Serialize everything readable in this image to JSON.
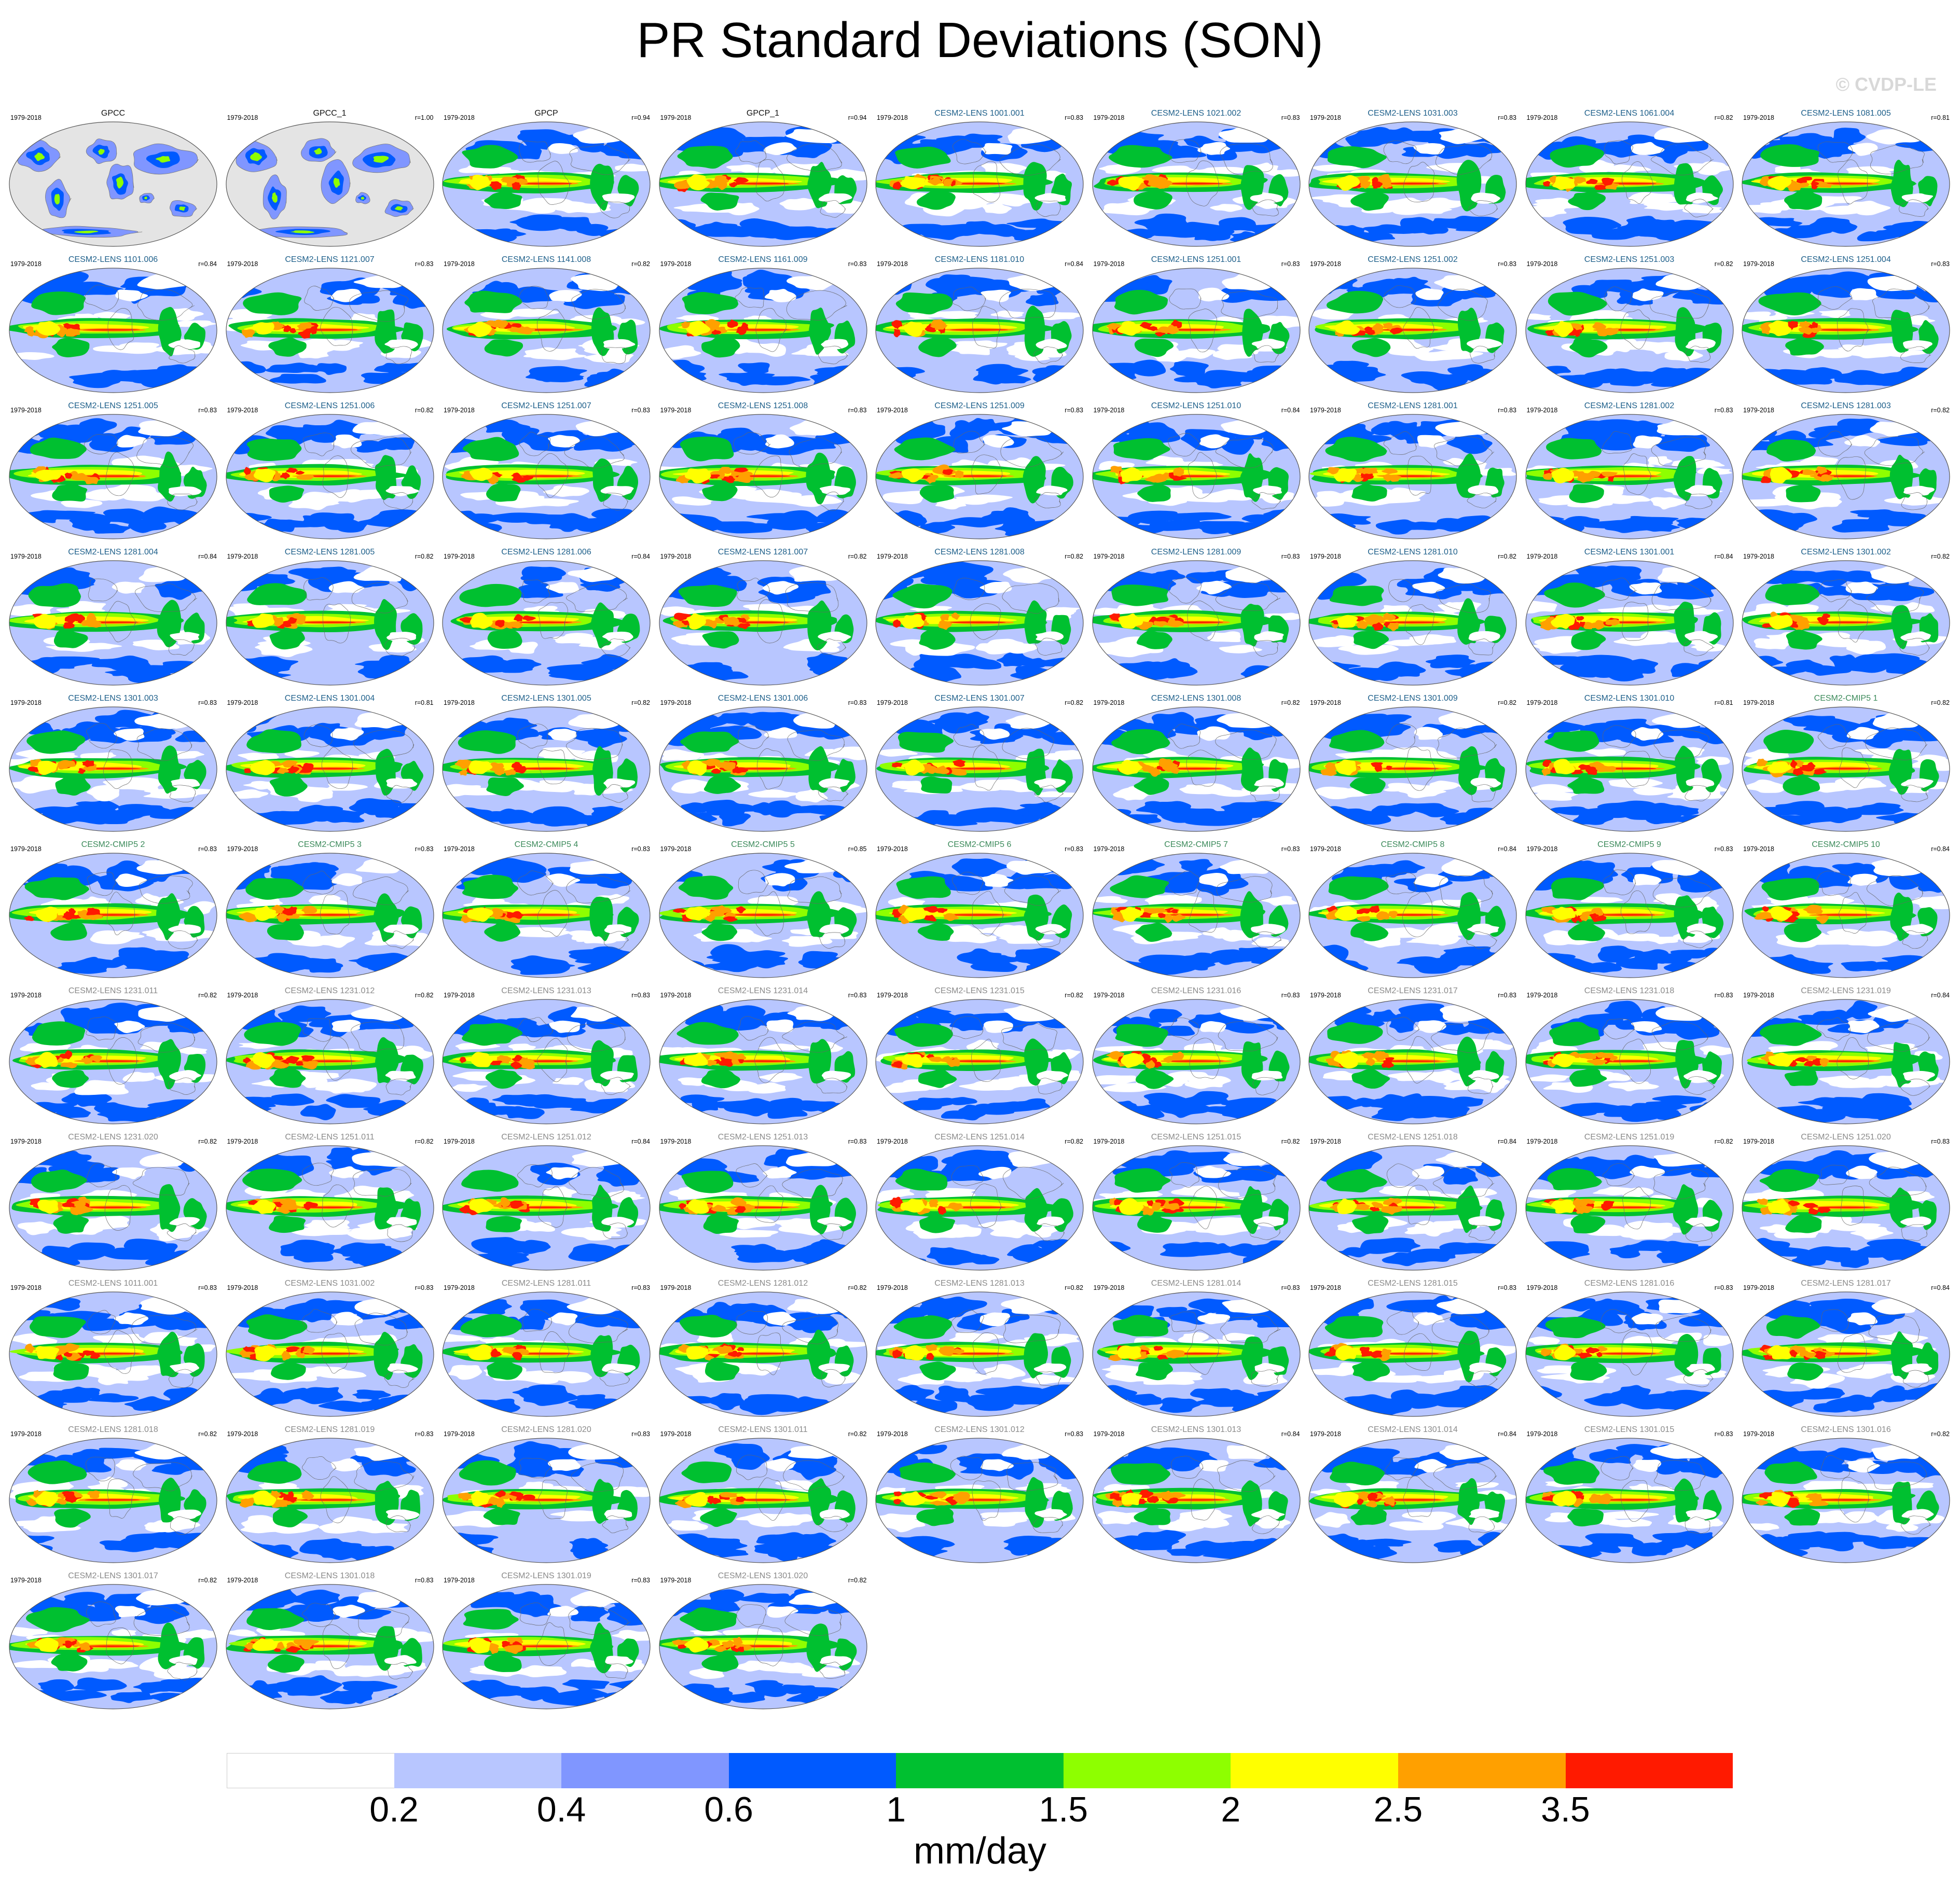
{
  "title": "PR Standard Deviations (SON)",
  "watermark": "© CVDP-LE",
  "period": "1979-2018",
  "colorbar": {
    "units": "mm/day",
    "ticks": [
      "0.2",
      "0.4",
      "0.6",
      "1",
      "1.5",
      "2",
      "2.5",
      "3.5"
    ],
    "colors": [
      "#ffffff",
      "#b8c6ff",
      "#8096ff",
      "#005aff",
      "#00c030",
      "#8eff00",
      "#ffff00",
      "#ffa000",
      "#ff1a00"
    ]
  },
  "panel_colors": {
    "obs": "#111111",
    "lens": "#1d5f8a",
    "cmip": "#3b8a5a",
    "gray": "#8a8a8a"
  },
  "panels": [
    {
      "name": "GPCC",
      "corr": "",
      "group": "obs",
      "masked": true
    },
    {
      "name": "GPCC_1",
      "corr": "r=1.00",
      "group": "obs",
      "masked": true
    },
    {
      "name": "GPCP",
      "corr": "r=0.94",
      "group": "obs",
      "masked": false
    },
    {
      "name": "GPCP_1",
      "corr": "r=0.94",
      "group": "obs",
      "masked": false
    },
    {
      "name": "CESM2-LENS 1001.001",
      "corr": "r=0.83",
      "group": "lens"
    },
    {
      "name": "CESM2-LENS 1021.002",
      "corr": "r=0.83",
      "group": "lens"
    },
    {
      "name": "CESM2-LENS 1031.003",
      "corr": "r=0.83",
      "group": "lens"
    },
    {
      "name": "CESM2-LENS 1061.004",
      "corr": "r=0.82",
      "group": "lens"
    },
    {
      "name": "CESM2-LENS 1081.005",
      "corr": "r=0.81",
      "group": "lens"
    },
    {
      "name": "CESM2-LENS 1101.006",
      "corr": "r=0.84",
      "group": "lens"
    },
    {
      "name": "CESM2-LENS 1121.007",
      "corr": "r=0.83",
      "group": "lens"
    },
    {
      "name": "CESM2-LENS 1141.008",
      "corr": "r=0.82",
      "group": "lens"
    },
    {
      "name": "CESM2-LENS 1161.009",
      "corr": "r=0.83",
      "group": "lens"
    },
    {
      "name": "CESM2-LENS 1181.010",
      "corr": "r=0.84",
      "group": "lens"
    },
    {
      "name": "CESM2-LENS 1251.001",
      "corr": "r=0.83",
      "group": "lens"
    },
    {
      "name": "CESM2-LENS 1251.002",
      "corr": "r=0.83",
      "group": "lens"
    },
    {
      "name": "CESM2-LENS 1251.003",
      "corr": "r=0.82",
      "group": "lens"
    },
    {
      "name": "CESM2-LENS 1251.004",
      "corr": "r=0.83",
      "group": "lens"
    },
    {
      "name": "CESM2-LENS 1251.005",
      "corr": "r=0.83",
      "group": "lens"
    },
    {
      "name": "CESM2-LENS 1251.006",
      "corr": "r=0.82",
      "group": "lens"
    },
    {
      "name": "CESM2-LENS 1251.007",
      "corr": "r=0.83",
      "group": "lens"
    },
    {
      "name": "CESM2-LENS 1251.008",
      "corr": "r=0.83",
      "group": "lens"
    },
    {
      "name": "CESM2-LENS 1251.009",
      "corr": "r=0.83",
      "group": "lens"
    },
    {
      "name": "CESM2-LENS 1251.010",
      "corr": "r=0.84",
      "group": "lens"
    },
    {
      "name": "CESM2-LENS 1281.001",
      "corr": "r=0.83",
      "group": "lens"
    },
    {
      "name": "CESM2-LENS 1281.002",
      "corr": "r=0.83",
      "group": "lens"
    },
    {
      "name": "CESM2-LENS 1281.003",
      "corr": "r=0.82",
      "group": "lens"
    },
    {
      "name": "CESM2-LENS 1281.004",
      "corr": "r=0.84",
      "group": "lens"
    },
    {
      "name": "CESM2-LENS 1281.005",
      "corr": "r=0.82",
      "group": "lens"
    },
    {
      "name": "CESM2-LENS 1281.006",
      "corr": "r=0.84",
      "group": "lens"
    },
    {
      "name": "CESM2-LENS 1281.007",
      "corr": "r=0.82",
      "group": "lens"
    },
    {
      "name": "CESM2-LENS 1281.008",
      "corr": "r=0.82",
      "group": "lens"
    },
    {
      "name": "CESM2-LENS 1281.009",
      "corr": "r=0.83",
      "group": "lens"
    },
    {
      "name": "CESM2-LENS 1281.010",
      "corr": "r=0.82",
      "group": "lens"
    },
    {
      "name": "CESM2-LENS 1301.001",
      "corr": "r=0.84",
      "group": "lens"
    },
    {
      "name": "CESM2-LENS 1301.002",
      "corr": "r=0.82",
      "group": "lens"
    },
    {
      "name": "CESM2-LENS 1301.003",
      "corr": "r=0.83",
      "group": "lens"
    },
    {
      "name": "CESM2-LENS 1301.004",
      "corr": "r=0.81",
      "group": "lens"
    },
    {
      "name": "CESM2-LENS 1301.005",
      "corr": "r=0.82",
      "group": "lens"
    },
    {
      "name": "CESM2-LENS 1301.006",
      "corr": "r=0.83",
      "group": "lens"
    },
    {
      "name": "CESM2-LENS 1301.007",
      "corr": "r=0.82",
      "group": "lens"
    },
    {
      "name": "CESM2-LENS 1301.008",
      "corr": "r=0.82",
      "group": "lens"
    },
    {
      "name": "CESM2-LENS 1301.009",
      "corr": "r=0.82",
      "group": "lens"
    },
    {
      "name": "CESM2-LENS 1301.010",
      "corr": "r=0.81",
      "group": "lens"
    },
    {
      "name": "CESM2-CMIP5 1",
      "corr": "r=0.82",
      "group": "cmip"
    },
    {
      "name": "CESM2-CMIP5 2",
      "corr": "r=0.83",
      "group": "cmip"
    },
    {
      "name": "CESM2-CMIP5 3",
      "corr": "r=0.83",
      "group": "cmip"
    },
    {
      "name": "CESM2-CMIP5 4",
      "corr": "r=0.83",
      "group": "cmip"
    },
    {
      "name": "CESM2-CMIP5 5",
      "corr": "r=0.85",
      "group": "cmip"
    },
    {
      "name": "CESM2-CMIP5 6",
      "corr": "r=0.83",
      "group": "cmip"
    },
    {
      "name": "CESM2-CMIP5 7",
      "corr": "r=0.83",
      "group": "cmip"
    },
    {
      "name": "CESM2-CMIP5 8",
      "corr": "r=0.84",
      "group": "cmip"
    },
    {
      "name": "CESM2-CMIP5 9",
      "corr": "r=0.83",
      "group": "cmip"
    },
    {
      "name": "CESM2-CMIP5 10",
      "corr": "r=0.84",
      "group": "cmip"
    },
    {
      "name": "CESM2-LENS 1231.011",
      "corr": "r=0.82",
      "group": "gray"
    },
    {
      "name": "CESM2-LENS 1231.012",
      "corr": "r=0.82",
      "group": "gray"
    },
    {
      "name": "CESM2-LENS 1231.013",
      "corr": "r=0.83",
      "group": "gray"
    },
    {
      "name": "CESM2-LENS 1231.014",
      "corr": "r=0.83",
      "group": "gray"
    },
    {
      "name": "CESM2-LENS 1231.015",
      "corr": "r=0.82",
      "group": "gray"
    },
    {
      "name": "CESM2-LENS 1231.016",
      "corr": "r=0.83",
      "group": "gray"
    },
    {
      "name": "CESM2-LENS 1231.017",
      "corr": "r=0.83",
      "group": "gray"
    },
    {
      "name": "CESM2-LENS 1231.018",
      "corr": "r=0.83",
      "group": "gray"
    },
    {
      "name": "CESM2-LENS 1231.019",
      "corr": "r=0.84",
      "group": "gray"
    },
    {
      "name": "CESM2-LENS 1231.020",
      "corr": "r=0.82",
      "group": "gray"
    },
    {
      "name": "CESM2-LENS 1251.011",
      "corr": "r=0.82",
      "group": "gray"
    },
    {
      "name": "CESM2-LENS 1251.012",
      "corr": "r=0.84",
      "group": "gray"
    },
    {
      "name": "CESM2-LENS 1251.013",
      "corr": "r=0.83",
      "group": "gray"
    },
    {
      "name": "CESM2-LENS 1251.014",
      "corr": "r=0.82",
      "group": "gray"
    },
    {
      "name": "CESM2-LENS 1251.015",
      "corr": "r=0.82",
      "group": "gray"
    },
    {
      "name": "CESM2-LENS 1251.018",
      "corr": "r=0.84",
      "group": "gray"
    },
    {
      "name": "CESM2-LENS 1251.019",
      "corr": "r=0.82",
      "group": "gray"
    },
    {
      "name": "CESM2-LENS 1251.020",
      "corr": "r=0.83",
      "group": "gray"
    },
    {
      "name": "CESM2-LENS 1011.001",
      "corr": "r=0.83",
      "group": "gray"
    },
    {
      "name": "CESM2-LENS 1031.002",
      "corr": "r=0.83",
      "group": "gray"
    },
    {
      "name": "CESM2-LENS 1281.011",
      "corr": "r=0.83",
      "group": "gray"
    },
    {
      "name": "CESM2-LENS 1281.012",
      "corr": "r=0.82",
      "group": "gray"
    },
    {
      "name": "CESM2-LENS 1281.013",
      "corr": "r=0.82",
      "group": "gray"
    },
    {
      "name": "CESM2-LENS 1281.014",
      "corr": "r=0.83",
      "group": "gray"
    },
    {
      "name": "CESM2-LENS 1281.015",
      "corr": "r=0.83",
      "group": "gray"
    },
    {
      "name": "CESM2-LENS 1281.016",
      "corr": "r=0.83",
      "group": "gray"
    },
    {
      "name": "CESM2-LENS 1281.017",
      "corr": "r=0.84",
      "group": "gray"
    },
    {
      "name": "CESM2-LENS 1281.018",
      "corr": "r=0.82",
      "group": "gray"
    },
    {
      "name": "CESM2-LENS 1281.019",
      "corr": "r=0.83",
      "group": "gray"
    },
    {
      "name": "CESM2-LENS 1281.020",
      "corr": "r=0.83",
      "group": "gray"
    },
    {
      "name": "CESM2-LENS 1301.011",
      "corr": "r=0.82",
      "group": "gray"
    },
    {
      "name": "CESM2-LENS 1301.012",
      "corr": "r=0.83",
      "group": "gray"
    },
    {
      "name": "CESM2-LENS 1301.013",
      "corr": "r=0.84",
      "group": "gray"
    },
    {
      "name": "CESM2-LENS 1301.014",
      "corr": "r=0.84",
      "group": "gray"
    },
    {
      "name": "CESM2-LENS 1301.015",
      "corr": "r=0.83",
      "group": "gray"
    },
    {
      "name": "CESM2-LENS 1301.016",
      "corr": "r=0.82",
      "group": "gray"
    },
    {
      "name": "CESM2-LENS 1301.017",
      "corr": "r=0.82",
      "group": "gray"
    },
    {
      "name": "CESM2-LENS 1301.018",
      "corr": "r=0.83",
      "group": "gray"
    },
    {
      "name": "CESM2-LENS 1301.019",
      "corr": "r=0.83",
      "group": "gray"
    },
    {
      "name": "CESM2-LENS 1301.020",
      "corr": "r=0.82",
      "group": "gray"
    }
  ]
}
